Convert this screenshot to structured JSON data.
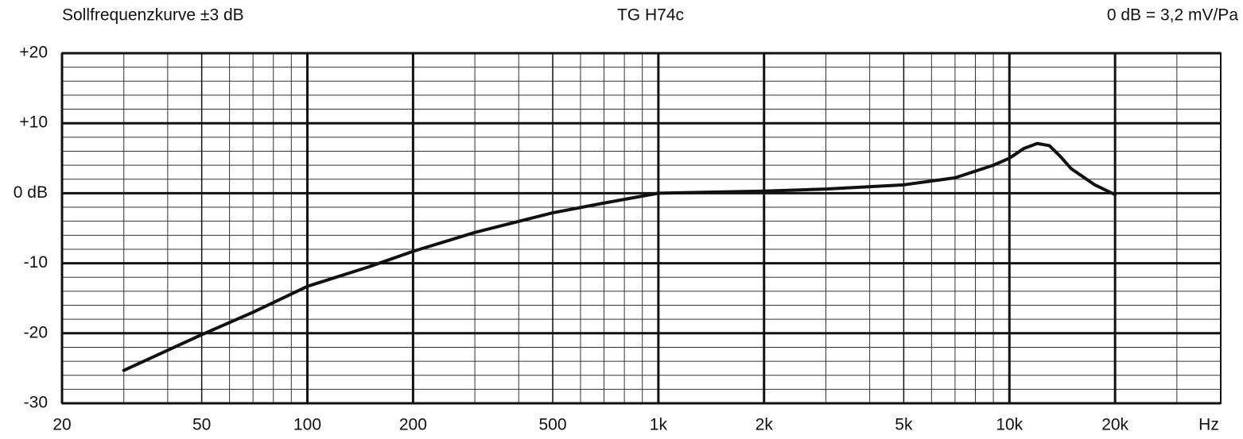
{
  "chart_data": {
    "type": "line",
    "title": "TG H74c",
    "subtitle": "Sollfrequenzkurve ±3 dB",
    "annotation": "0 dB = 3,2 mV/Pa",
    "x_label": "Hz",
    "x_scale": "log",
    "xlim": [
      20,
      40000
    ],
    "ylim": [
      -30,
      20
    ],
    "xticks": [
      20,
      50,
      100,
      200,
      500,
      {
        "value": 1000,
        "label": "1k"
      },
      {
        "value": 2000,
        "label": "2k"
      },
      {
        "value": 5000,
        "label": "5k"
      },
      {
        "value": 10000,
        "label": "10k"
      },
      {
        "value": 20000,
        "label": "20k"
      }
    ],
    "yticks": [
      {
        "value": 20,
        "label": "+20"
      },
      {
        "value": 10,
        "label": "+10"
      },
      {
        "value": 0,
        "label": "0 dB"
      },
      -10,
      -20,
      -30
    ],
    "x_minor_grid": [
      30,
      40,
      60,
      70,
      80,
      90,
      300,
      400,
      600,
      700,
      800,
      900,
      3000,
      4000,
      6000,
      7000,
      8000,
      9000,
      30000
    ],
    "y_minor_grid": [
      18,
      16,
      14,
      12,
      8,
      6,
      4,
      2,
      -2,
      -4,
      -6,
      -8,
      -12,
      -14,
      -16,
      -18,
      -22,
      -24,
      -26,
      -28
    ],
    "grid": true,
    "x": [
      30,
      50,
      70,
      100,
      150,
      200,
      300,
      500,
      700,
      1000,
      2000,
      3000,
      5000,
      7000,
      9000,
      10000,
      11000,
      12000,
      13000,
      14000,
      15000,
      17500,
      20000
    ],
    "series": [
      {
        "color": "#111111",
        "values": [
          -25.3,
          -20.2,
          -17,
          -13.3,
          -10.5,
          -8.3,
          -5.6,
          -2.8,
          -1.4,
          0,
          0.3,
          0.6,
          1.2,
          2.2,
          4,
          5,
          6.4,
          7.1,
          6.8,
          5.2,
          3.5,
          1.2,
          -0.2
        ]
      }
    ]
  }
}
